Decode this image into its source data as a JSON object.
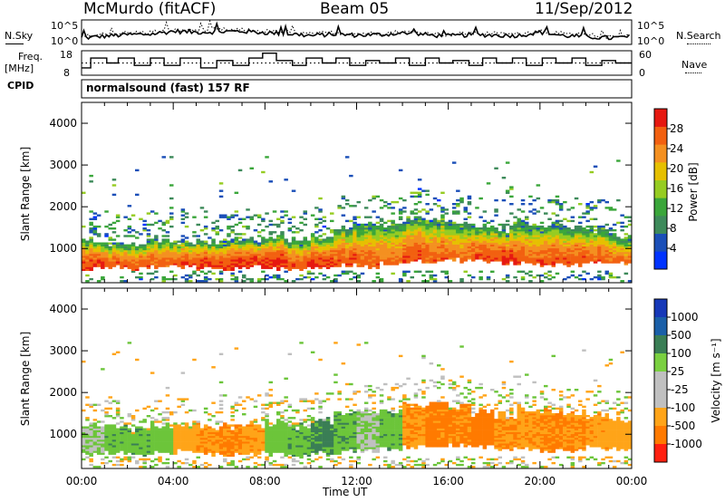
{
  "header": {
    "station": "McMurdo (fitACF)",
    "beam": "Beam 05",
    "date": "11/Sep/2012"
  },
  "side_labels": {
    "nsky": "N.Sky",
    "freq": "Freq.",
    "freq_unit": "[MHz]",
    "cpid": "CPID",
    "cpid_value": "normalsound (fast) 157 RF",
    "nsearch": "N.Search",
    "nave": "Nave"
  },
  "axis_text": {
    "slant_range": "Slant Range [km]",
    "time": "Time UT",
    "power_label": "Power [dB]",
    "velocity_label": "Velocity [m s⁻¹]"
  },
  "colors": {
    "power": [
      "#0033ff",
      "#1b4fb8",
      "#3d8a5a",
      "#3aa63a",
      "#96cc22",
      "#e6c000",
      "#f49020",
      "#f26010",
      "#e61810"
    ],
    "velocity": [
      "#ff2010",
      "#ff6a00",
      "#ffa000",
      "#ffb020",
      "#c0c0c0",
      "#b8b8b8",
      "#3aa63a",
      "#7ad040",
      "#3a7e55",
      "#1a5fa8",
      "#1638b8"
    ]
  },
  "chart_data": [
    {
      "id": "noise",
      "type": "line",
      "ylabel_left": [
        "10^5",
        "10^0"
      ],
      "ylabel_right": [
        "10^5",
        "10^0"
      ],
      "ylim": [
        0,
        5
      ],
      "xlim": [
        0,
        24
      ],
      "series": [
        {
          "name": "N.Sky",
          "style": "solid",
          "x": [
            0,
            1,
            2,
            3,
            4,
            5,
            6,
            7,
            8,
            9,
            10,
            11,
            12,
            13,
            14,
            15,
            16,
            17,
            18,
            19,
            20,
            21,
            22,
            23,
            24
          ],
          "y": [
            1.2,
            1.6,
            1.9,
            2.0,
            2.6,
            2.4,
            2.5,
            2.6,
            2.3,
            2.1,
            1.7,
            2.0,
            1.8,
            1.9,
            2.2,
            1.9,
            1.6,
            1.9,
            1.8,
            1.7,
            2.4,
            1.7,
            1.5,
            1.2,
            1.5
          ]
        },
        {
          "name": "N.Search",
          "style": "dotted",
          "x": [
            0,
            1,
            2,
            3,
            4,
            5,
            6,
            7,
            8,
            9,
            10,
            11,
            12,
            13,
            14,
            15,
            16,
            17,
            18,
            19,
            20,
            21,
            22,
            23,
            24
          ],
          "y": [
            1.5,
            2.0,
            2.2,
            2.4,
            2.8,
            2.8,
            2.9,
            2.8,
            2.6,
            2.4,
            2.0,
            2.3,
            2.1,
            2.2,
            2.5,
            2.2,
            1.9,
            2.2,
            2.1,
            2.0,
            2.7,
            2.0,
            1.8,
            1.5,
            1.8
          ]
        }
      ]
    },
    {
      "id": "freq_nave",
      "type": "line",
      "yticks_left": [
        "18",
        "8"
      ],
      "yticks_right": [
        "60",
        "0"
      ],
      "ylim": [
        8,
        18
      ],
      "xlim": [
        0,
        24
      ],
      "series": [
        {
          "name": "Freq",
          "style": "solid",
          "x": [
            0,
            0.4,
            1.1,
            1.6,
            2.3,
            3.0,
            3.6,
            4.3,
            5.2,
            5.9,
            6.6,
            7.3,
            7.9,
            8.5,
            9.2,
            9.8,
            10.5,
            11.1,
            11.7,
            12.4,
            13.0,
            13.7,
            14.3,
            15.0,
            15.6,
            16.2,
            16.9,
            17.5,
            18.1,
            18.8,
            19.4,
            20.1,
            20.7,
            21.4,
            22.0,
            22.7,
            23.3,
            24
          ],
          "y": [
            11,
            15,
            13,
            15,
            12,
            15,
            12,
            15,
            11,
            14,
            12,
            15,
            17,
            14,
            12,
            15,
            13,
            15,
            12,
            14,
            13,
            15,
            12,
            15,
            13,
            14,
            12,
            15,
            13,
            15,
            12,
            15,
            13,
            15,
            12,
            14,
            13,
            15
          ]
        },
        {
          "name": "Nave",
          "style": "dotted",
          "x": [
            0,
            24
          ],
          "y": [
            13,
            13
          ]
        }
      ]
    },
    {
      "id": "power",
      "type": "heatmap",
      "xlim": [
        0,
        24
      ],
      "ylim": [
        180,
        4500
      ],
      "xticks": [
        "00:00",
        "04:00",
        "08:00",
        "12:00",
        "16:00",
        "20:00",
        "00:00"
      ],
      "yticks": [
        1000,
        2000,
        3000,
        4000
      ],
      "color_bar": {
        "ticks": [
          "28",
          "24",
          "20",
          "16",
          "12",
          "8",
          "4"
        ],
        "range": [
          0,
          30
        ]
      },
      "x": [
        0,
        1,
        2,
        3,
        4,
        5,
        6,
        7,
        8,
        9,
        10,
        11,
        12,
        13,
        14,
        15,
        16,
        17,
        18,
        19,
        20,
        21,
        22,
        23
      ],
      "main_band": {
        "lower_km": [
          500,
          520,
          500,
          540,
          560,
          500,
          480,
          520,
          500,
          480,
          520,
          560,
          560,
          620,
          660,
          640,
          700,
          680,
          620,
          600,
          580,
          600,
          640,
          620
        ],
        "upper_km": [
          1200,
          1150,
          1100,
          1200,
          1150,
          1150,
          1150,
          1200,
          1250,
          1150,
          1300,
          1500,
          1550,
          1600,
          1650,
          1700,
          1650,
          1500,
          1450,
          1600,
          1550,
          1500,
          1450,
          1300
        ],
        "peak_db": [
          27,
          26,
          26,
          25,
          26,
          27,
          28,
          27,
          28,
          26,
          27,
          26,
          25,
          24,
          26,
          25,
          24,
          26,
          27,
          25,
          26,
          26,
          25,
          24
        ]
      },
      "scatter_km": [
        1600,
        3000
      ]
    },
    {
      "id": "velocity",
      "type": "heatmap",
      "xlim": [
        0,
        24
      ],
      "ylim": [
        180,
        4500
      ],
      "xticks": [
        "00:00",
        "04:00",
        "08:00",
        "12:00",
        "16:00",
        "20:00",
        "00:00"
      ],
      "yticks": [
        1000,
        2000,
        3000,
        4000
      ],
      "color_bar": {
        "ticks": [
          "1000",
          "500",
          "100",
          "25",
          "-25",
          "-100",
          "-500",
          "-1000"
        ]
      },
      "x": [
        0,
        1,
        2,
        3,
        4,
        5,
        6,
        7,
        8,
        9,
        10,
        11,
        12,
        13,
        14,
        15,
        16,
        17,
        18,
        19,
        20,
        21,
        22,
        23
      ],
      "main_band": {
        "lower_km": [
          500,
          520,
          500,
          540,
          560,
          500,
          480,
          520,
          500,
          480,
          520,
          560,
          560,
          620,
          660,
          640,
          700,
          680,
          620,
          600,
          580,
          600,
          640,
          620
        ],
        "upper_km": [
          1200,
          1150,
          1100,
          1200,
          1150,
          1150,
          1150,
          1200,
          1250,
          1150,
          1300,
          1500,
          1550,
          1600,
          1650,
          1700,
          1650,
          1500,
          1450,
          1600,
          1550,
          1500,
          1450,
          1300
        ],
        "velocity_ms": [
          20,
          80,
          80,
          60,
          -60,
          -90,
          -110,
          -80,
          60,
          80,
          120,
          90,
          20,
          80,
          -90,
          -120,
          -110,
          -130,
          -100,
          -90,
          -110,
          -100,
          -80,
          -60
        ]
      }
    }
  ]
}
